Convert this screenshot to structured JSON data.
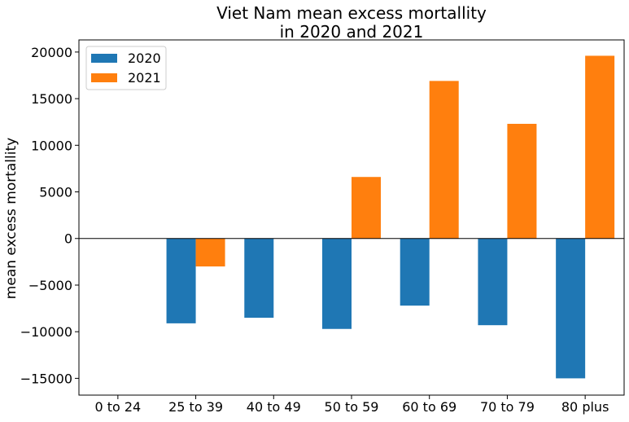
{
  "chart_data": {
    "type": "bar",
    "title_line1": "Viet Nam mean excess mortallity",
    "title_line2": "in 2020 and 2021",
    "xlabel": "",
    "ylabel": "mean excess mortallity",
    "categories": [
      "0 to 24",
      "25 to 39",
      "40 to 49",
      "50 to 59",
      "60 to 69",
      "70 to 79",
      "80 plus"
    ],
    "series": [
      {
        "name": "2020",
        "color": "#1f77b4",
        "values": [
          0,
          -9100,
          -8500,
          -9700,
          -7200,
          -9300,
          -15000
        ]
      },
      {
        "name": "2021",
        "color": "#ff7f0e",
        "values": [
          0,
          -3000,
          0,
          6600,
          16900,
          12300,
          19600
        ]
      }
    ],
    "ylim": [
      -16800,
      21300
    ],
    "yticks": [
      -15000,
      -10000,
      -5000,
      0,
      5000,
      10000,
      15000,
      20000
    ],
    "ytick_labels": [
      "−15000",
      "−10000",
      "−5000",
      "0",
      "5000",
      "10000",
      "15000",
      "20000"
    ],
    "legend_position": "top-left",
    "grid": false,
    "zero_line": true
  }
}
